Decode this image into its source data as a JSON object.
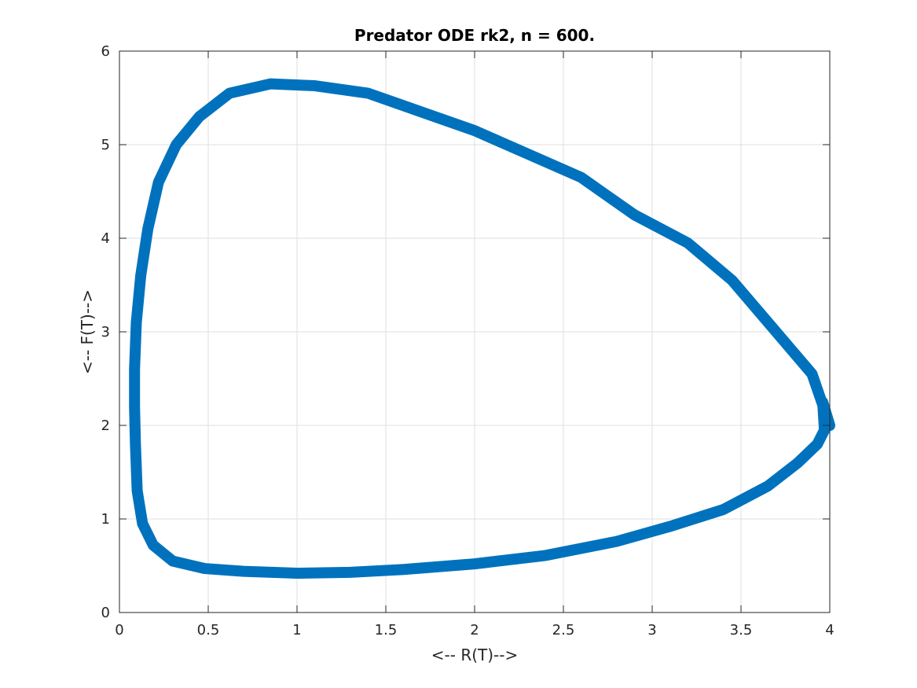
{
  "chart_data": {
    "type": "line",
    "title": "Predator ODE rk2, n = 600.",
    "xlabel": "<-- R(T)-->",
    "ylabel": "<-- F(T)-->",
    "xlim": [
      0,
      4
    ],
    "ylim": [
      0,
      6
    ],
    "xticks": [
      "0",
      "0.5",
      "1",
      "1.5",
      "2",
      "2.5",
      "3",
      "3.5",
      "4"
    ],
    "yticks": [
      "0",
      "1",
      "2",
      "3",
      "4",
      "5",
      "6"
    ],
    "grid": true,
    "box": true,
    "line_color": "#0072BD",
    "series": [
      {
        "x": [
          4.0,
          3.9,
          3.72,
          3.45,
          3.2,
          2.9,
          2.6,
          2.3,
          2.0,
          1.7,
          1.4,
          1.1,
          0.85,
          0.62,
          0.45,
          0.32,
          0.22,
          0.16,
          0.12,
          0.095,
          0.085,
          0.085,
          0.09,
          0.1,
          0.13,
          0.19,
          0.3,
          0.48,
          0.7,
          1.0,
          1.3,
          1.6,
          2.0,
          2.4,
          2.8,
          3.1,
          3.4,
          3.65,
          3.82,
          3.93,
          3.97,
          3.96,
          4.0
        ],
        "y": [
          2.0,
          2.55,
          2.95,
          3.55,
          3.95,
          4.25,
          4.65,
          4.9,
          5.15,
          5.35,
          5.55,
          5.63,
          5.65,
          5.55,
          5.3,
          5.0,
          4.6,
          4.1,
          3.6,
          3.1,
          2.6,
          2.2,
          1.8,
          1.3,
          0.95,
          0.72,
          0.55,
          0.47,
          0.44,
          0.42,
          0.43,
          0.46,
          0.52,
          0.61,
          0.76,
          0.92,
          1.1,
          1.35,
          1.6,
          1.8,
          1.95,
          2.25,
          2.0
        ]
      }
    ]
  }
}
